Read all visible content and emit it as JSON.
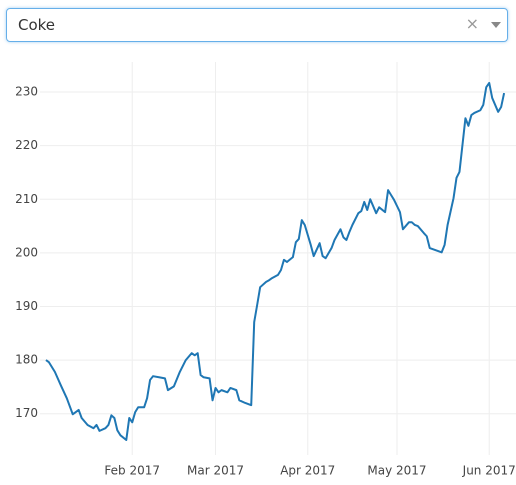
{
  "dropdown": {
    "value": "Coke"
  },
  "chart_data": {
    "type": "line",
    "x": [
      "2017-01-03",
      "2017-01-04",
      "2017-01-06",
      "2017-01-08",
      "2017-01-10",
      "2017-01-11",
      "2017-01-12",
      "2017-01-14",
      "2017-01-15",
      "2017-01-17",
      "2017-01-19",
      "2017-01-20",
      "2017-01-21",
      "2017-01-23",
      "2017-01-24",
      "2017-01-25",
      "2017-01-26",
      "2017-01-27",
      "2017-01-28",
      "2017-01-30",
      "2017-01-31",
      "2017-02-01",
      "2017-02-02",
      "2017-02-03",
      "2017-02-05",
      "2017-02-06",
      "2017-02-07",
      "2017-02-08",
      "2017-02-10",
      "2017-02-12",
      "2017-02-13",
      "2017-02-15",
      "2017-02-17",
      "2017-02-19",
      "2017-02-21",
      "2017-02-22",
      "2017-02-23",
      "2017-02-24",
      "2017-02-25",
      "2017-02-27",
      "2017-02-28",
      "2017-03-01",
      "2017-03-02",
      "2017-03-03",
      "2017-03-05",
      "2017-03-06",
      "2017-03-08",
      "2017-03-09",
      "2017-03-11",
      "2017-03-13",
      "2017-03-14",
      "2017-03-15",
      "2017-03-16",
      "2017-03-18",
      "2017-03-19",
      "2017-03-20",
      "2017-03-22",
      "2017-03-23",
      "2017-03-24",
      "2017-03-25",
      "2017-03-27",
      "2017-03-28",
      "2017-03-29",
      "2017-03-30",
      "2017-03-31",
      "2017-04-02",
      "2017-04-03",
      "2017-04-05",
      "2017-04-06",
      "2017-04-07",
      "2017-04-09",
      "2017-04-10",
      "2017-04-12",
      "2017-04-13",
      "2017-04-14",
      "2017-04-15",
      "2017-04-16",
      "2017-04-18",
      "2017-04-19",
      "2017-04-20",
      "2017-04-21",
      "2017-04-22",
      "2017-04-24",
      "2017-04-25",
      "2017-04-27",
      "2017-04-28",
      "2017-04-29",
      "2017-04-30",
      "2017-05-02",
      "2017-05-03",
      "2017-05-05",
      "2017-05-06",
      "2017-05-07",
      "2017-05-08",
      "2017-05-10",
      "2017-05-11",
      "2017-05-12",
      "2017-05-14",
      "2017-05-16",
      "2017-05-17",
      "2017-05-18",
      "2017-05-20",
      "2017-05-21",
      "2017-05-22",
      "2017-05-24",
      "2017-05-25",
      "2017-05-26",
      "2017-05-27",
      "2017-05-29",
      "2017-05-30",
      "2017-05-31",
      "2017-06-01",
      "2017-06-02",
      "2017-06-04",
      "2017-06-05",
      "2017-06-06"
    ],
    "series": [
      {
        "color": "#1f77b4",
        "values": [
          180.0,
          179.6,
          177.8,
          175.3,
          172.9,
          171.4,
          169.9,
          170.7,
          169.2,
          167.9,
          167.3,
          167.9,
          166.8,
          167.3,
          167.9,
          169.7,
          169.2,
          166.9,
          166.0,
          165.1,
          169.2,
          168.4,
          170.3,
          171.2,
          171.2,
          172.9,
          176.3,
          177.0,
          176.8,
          176.6,
          174.4,
          175.1,
          177.8,
          180.0,
          181.3,
          180.9,
          181.3,
          177.2,
          176.8,
          176.6,
          172.5,
          174.8,
          174.0,
          174.4,
          174.0,
          174.8,
          174.4,
          172.5,
          172.0,
          171.6,
          187.1,
          190.3,
          193.6,
          194.6,
          194.9,
          195.3,
          195.9,
          196.8,
          198.7,
          198.3,
          199.2,
          202.0,
          202.6,
          206.1,
          205.2,
          201.5,
          199.4,
          201.8,
          199.4,
          199.0,
          200.9,
          202.4,
          204.4,
          202.9,
          202.4,
          203.9,
          205.2,
          207.4,
          207.8,
          209.5,
          208.0,
          210.0,
          207.4,
          208.5,
          207.6,
          211.7,
          210.8,
          209.9,
          207.6,
          204.4,
          205.7,
          205.7,
          205.2,
          205.0,
          203.7,
          203.1,
          200.9,
          200.5,
          200.1,
          201.5,
          205.2,
          210.2,
          214.0,
          215.1,
          225.1,
          223.7,
          225.7,
          226.1,
          226.6,
          227.6,
          230.9,
          231.7,
          228.9,
          226.3,
          227.2,
          229.8
        ]
      }
    ],
    "xlim": [
      "2017-01-01",
      "2017-06-10"
    ],
    "xticks": [
      {
        "value": "2017-02-01",
        "label": "Feb 2017"
      },
      {
        "value": "2017-03-01",
        "label": "Mar 2017"
      },
      {
        "value": "2017-04-01",
        "label": "Apr 2017"
      },
      {
        "value": "2017-05-01",
        "label": "May 2017"
      },
      {
        "value": "2017-06-01",
        "label": "Jun 2017"
      }
    ],
    "ylim": [
      162.3,
      235.6
    ],
    "yticks": [
      170,
      180,
      190,
      200,
      210,
      220,
      230
    ],
    "grid": true
  }
}
